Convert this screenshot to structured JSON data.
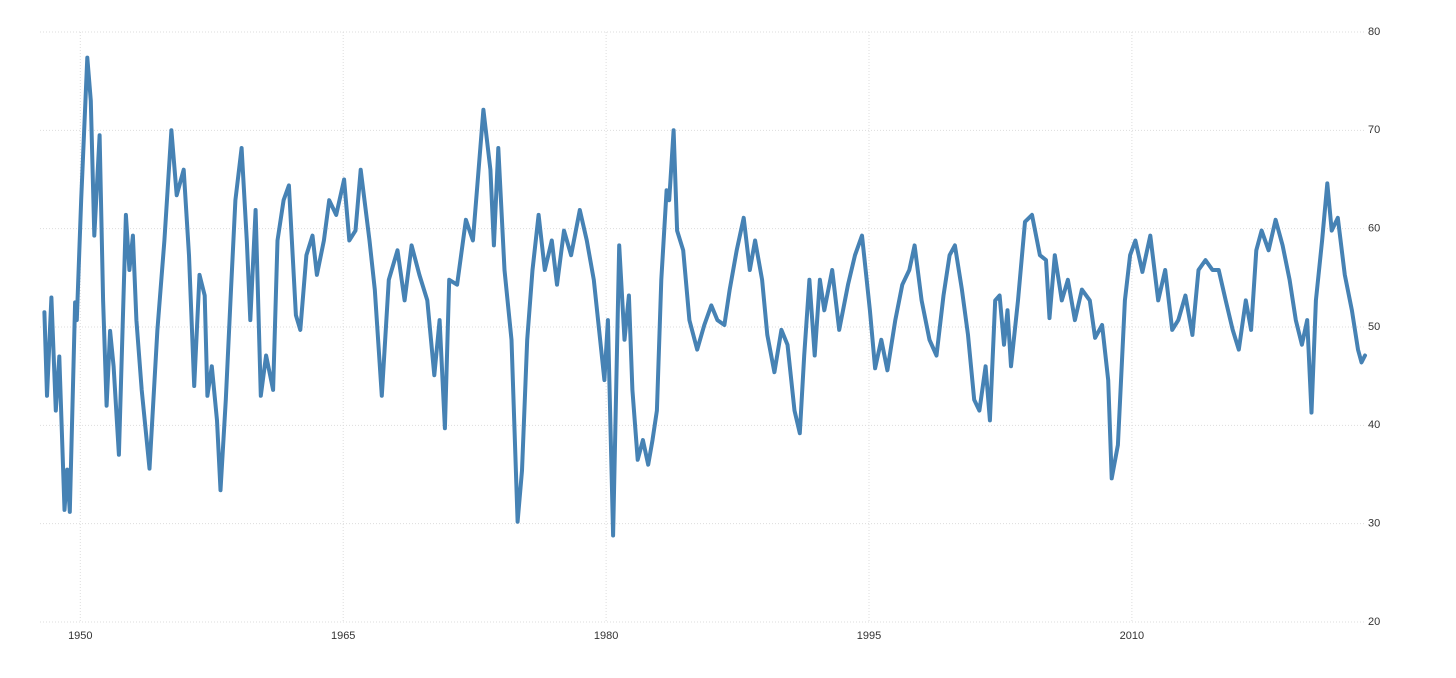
{
  "chart_data": {
    "type": "line",
    "x": [
      1947.95,
      1948.1,
      1948.35,
      1948.6,
      1948.8,
      1949.1,
      1949.25,
      1949.4,
      1949.7,
      1949.8,
      1950.05,
      1950.4,
      1950.6,
      1950.8,
      1951.1,
      1951.3,
      1951.5,
      1951.7,
      1951.9,
      1952.2,
      1952.6,
      1952.8,
      1953.0,
      1953.2,
      1953.5,
      1953.95,
      1954.4,
      1954.8,
      1955.2,
      1955.5,
      1955.9,
      1956.2,
      1956.5,
      1956.8,
      1957.1,
      1957.25,
      1957.5,
      1957.8,
      1958.0,
      1958.3,
      1958.6,
      1958.85,
      1959.2,
      1959.5,
      1959.7,
      1960.0,
      1960.3,
      1960.6,
      1961.0,
      1961.25,
      1961.6,
      1961.9,
      1962.3,
      1962.55,
      1962.9,
      1963.25,
      1963.5,
      1963.9,
      1964.2,
      1964.6,
      1965.05,
      1965.35,
      1965.7,
      1966.0,
      1966.5,
      1966.8,
      1967.2,
      1967.6,
      1968.1,
      1968.5,
      1968.9,
      1969.35,
      1969.8,
      1970.2,
      1970.5,
      1970.8,
      1971.05,
      1971.5,
      1972.0,
      1972.4,
      1972.7,
      1973.0,
      1973.4,
      1973.6,
      1973.85,
      1974.2,
      1974.6,
      1974.95,
      1975.2,
      1975.5,
      1975.8,
      1976.15,
      1976.5,
      1976.9,
      1977.2,
      1977.6,
      1978.0,
      1978.5,
      1978.9,
      1979.3,
      1979.6,
      1979.9,
      1980.1,
      1980.4,
      1980.75,
      1981.05,
      1981.3,
      1981.5,
      1981.8,
      1982.1,
      1982.4,
      1982.65,
      1982.9,
      1983.15,
      1983.45,
      1983.6,
      1983.85,
      1984.05,
      1984.4,
      1984.75,
      1985.2,
      1985.6,
      1986.0,
      1986.35,
      1986.75,
      1987.05,
      1987.45,
      1987.85,
      1988.2,
      1988.5,
      1988.9,
      1989.2,
      1989.6,
      1990.0,
      1990.35,
      1990.75,
      1991.05,
      1991.3,
      1991.6,
      1991.9,
      1992.2,
      1992.45,
      1992.9,
      1993.3,
      1993.8,
      1994.2,
      1994.6,
      1995.05,
      1995.35,
      1995.7,
      1996.05,
      1996.5,
      1996.9,
      1997.3,
      1997.6,
      1998.0,
      1998.45,
      1998.85,
      1999.25,
      1999.6,
      1999.9,
      2000.3,
      2000.65,
      2001.0,
      2001.3,
      2001.65,
      2001.9,
      2002.2,
      2002.45,
      2002.7,
      2002.9,
      2003.1,
      2003.5,
      2003.9,
      2004.3,
      2004.75,
      2005.1,
      2005.3,
      2005.6,
      2006.0,
      2006.35,
      2006.75,
      2007.15,
      2007.6,
      2007.9,
      2008.3,
      2008.65,
      2008.85,
      2009.2,
      2009.6,
      2009.9,
      2010.2,
      2010.6,
      2011.05,
      2011.5,
      2011.9,
      2012.3,
      2012.65,
      2013.05,
      2013.45,
      2013.8,
      2014.2,
      2014.6,
      2014.95,
      2015.35,
      2015.75,
      2016.1,
      2016.5,
      2016.8,
      2017.1,
      2017.4,
      2017.8,
      2018.2,
      2018.6,
      2019.0,
      2019.35,
      2019.7,
      2020.0,
      2020.25,
      2020.5,
      2020.85,
      2021.15,
      2021.4,
      2021.75,
      2022.15,
      2022.55,
      2022.9,
      2023.1,
      2023.3
    ],
    "series": [
      {
        "color": "#4682b4",
        "values": [
          51.5,
          43,
          53,
          41.5,
          47,
          31.4,
          35.5,
          31.2,
          52.5,
          50.7,
          63,
          77.4,
          73,
          59.3,
          69.5,
          52.7,
          42,
          49.6,
          46,
          37,
          61.4,
          55.8,
          59.3,
          50.7,
          43.6,
          35.6,
          49.7,
          58.8,
          70,
          63.4,
          66,
          57.3,
          44,
          55.3,
          53.2,
          43,
          46,
          40.5,
          33.4,
          42.6,
          53.8,
          62.9,
          68.2,
          58.8,
          50.7,
          61.9,
          43,
          47.1,
          43.6,
          58.8,
          62.9,
          64.4,
          51.2,
          49.7,
          57.3,
          59.3,
          55.3,
          58.8,
          62.9,
          61.4,
          65,
          58.8,
          59.8,
          66,
          58.8,
          53.8,
          43,
          54.8,
          57.8,
          52.7,
          58.3,
          55.3,
          52.7,
          45.1,
          50.7,
          39.7,
          54.8,
          54.3,
          60.9,
          58.8,
          65.5,
          72.1,
          66,
          58.3,
          68.2,
          55.8,
          48.7,
          30.2,
          35.4,
          48.7,
          55.8,
          61.4,
          55.8,
          58.8,
          54.3,
          59.8,
          57.3,
          61.9,
          58.8,
          54.8,
          49.7,
          44.6,
          50.7,
          28.8,
          58.3,
          48.7,
          53.2,
          43.6,
          36.5,
          38.5,
          36,
          38.5,
          41.5,
          54.8,
          63.9,
          62.9,
          70,
          59.8,
          57.8,
          50.7,
          47.7,
          50.2,
          52.2,
          50.7,
          50.2,
          53.8,
          57.8,
          61.1,
          55.8,
          58.8,
          54.8,
          49.2,
          45.4,
          49.7,
          48.2,
          41.5,
          39.2,
          47.1,
          54.8,
          47.1,
          54.8,
          51.7,
          55.8,
          49.7,
          54.3,
          57.3,
          59.3,
          51.7,
          45.8,
          48.7,
          45.6,
          50.7,
          54.3,
          55.8,
          58.3,
          52.7,
          48.7,
          47.1,
          53.2,
          57.3,
          58.3,
          53.8,
          49.2,
          42.6,
          41.5,
          46,
          40.5,
          52.7,
          53.2,
          48.2,
          51.7,
          46,
          52.7,
          60.7,
          61.4,
          57.3,
          56.8,
          50.9,
          57.3,
          52.7,
          54.8,
          50.7,
          53.8,
          52.7,
          48.9,
          50.2,
          44.6,
          34.6,
          38,
          52.7,
          57.3,
          58.8,
          55.6,
          59.3,
          52.7,
          55.8,
          49.7,
          50.7,
          53.2,
          49.2,
          55.8,
          56.8,
          55.8,
          55.8,
          52.7,
          49.7,
          47.7,
          52.7,
          49.7,
          57.8,
          59.8,
          57.8,
          60.9,
          58.3,
          54.8,
          50.7,
          48.2,
          50.7,
          41.3,
          52.7,
          58.8,
          64.6,
          59.8,
          61.1,
          55.3,
          51.7,
          47.7,
          46.4,
          47.1
        ]
      }
    ],
    "xlim": [
      1947.7,
      2023.3
    ],
    "xticks": [
      1950,
      1965,
      1980,
      1995,
      2010
    ],
    "ylim": [
      20,
      80
    ],
    "yticks": [
      20,
      30,
      40,
      50,
      60,
      70,
      80
    ],
    "grid": true
  }
}
